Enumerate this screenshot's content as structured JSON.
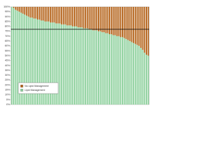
{
  "chart_data": {
    "type": "stacked_bar",
    "categories": [
      null,
      null,
      null,
      null,
      null,
      null,
      null,
      null,
      null,
      null,
      null,
      null,
      null,
      null,
      null,
      null,
      null,
      null,
      null,
      null,
      null,
      null,
      null,
      null,
      null,
      null,
      null,
      null,
      null,
      null,
      null,
      null,
      null,
      null,
      null,
      null,
      null,
      null,
      null,
      null,
      null,
      null,
      null,
      null,
      null,
      null,
      null,
      null,
      null,
      null,
      null,
      null,
      null,
      null,
      null,
      null,
      null,
      null,
      null,
      null,
      null,
      null,
      null,
      null,
      null,
      null,
      null,
      null,
      null,
      null,
      null,
      null,
      null,
      null,
      null
    ],
    "series": [
      {
        "name": "Lipid Management",
        "color": "#8fd19e",
        "values": [
          100,
          99,
          97,
          96,
          95,
          94,
          93,
          92,
          91,
          90,
          89,
          89,
          88,
          88,
          87,
          87,
          86,
          86,
          85,
          85,
          85,
          84,
          84,
          84,
          83,
          83,
          83,
          82,
          82,
          82,
          81,
          81,
          81,
          80,
          80,
          80,
          79,
          79,
          79,
          78,
          78,
          78,
          77,
          77,
          76,
          76,
          76,
          75,
          75,
          74,
          74,
          73,
          73,
          72,
          72,
          71,
          71,
          70,
          70,
          69,
          69,
          68,
          67,
          66,
          65,
          64,
          63,
          62,
          61,
          60,
          58,
          56,
          53,
          51,
          50
        ]
      },
      {
        "name": "No Lipid Management",
        "color": "#b5651d",
        "values": [
          0,
          1,
          3,
          4,
          5,
          6,
          7,
          8,
          9,
          10,
          11,
          11,
          12,
          12,
          13,
          13,
          14,
          14,
          15,
          15,
          15,
          16,
          16,
          16,
          17,
          17,
          17,
          18,
          18,
          18,
          19,
          19,
          19,
          20,
          20,
          20,
          21,
          21,
          21,
          22,
          22,
          22,
          23,
          23,
          24,
          24,
          24,
          25,
          25,
          26,
          26,
          27,
          27,
          28,
          28,
          29,
          29,
          30,
          30,
          31,
          31,
          32,
          33,
          34,
          35,
          36,
          37,
          38,
          39,
          40,
          42,
          44,
          47,
          49,
          50
        ]
      }
    ],
    "reference_line": 77,
    "ylim": [
      0,
      100
    ],
    "yticks": [
      {
        "value": 0,
        "label": "0%"
      },
      {
        "value": 5,
        "label": "5%"
      },
      {
        "value": 10,
        "label": "10%"
      },
      {
        "value": 15,
        "label": "15%"
      },
      {
        "value": 20,
        "label": "20%"
      },
      {
        "value": 25,
        "label": "25%"
      },
      {
        "value": 30,
        "label": "30%"
      },
      {
        "value": 35,
        "label": "35%"
      },
      {
        "value": 40,
        "label": "40%"
      },
      {
        "value": 45,
        "label": "45%"
      },
      {
        "value": 50,
        "label": "50%"
      },
      {
        "value": 55,
        "label": "55%"
      },
      {
        "value": 60,
        "label": "60%"
      },
      {
        "value": 65,
        "label": "65%"
      },
      {
        "value": 70,
        "label": "70%"
      },
      {
        "value": 75,
        "label": "75%"
      },
      {
        "value": 80,
        "label": "80%"
      },
      {
        "value": 85,
        "label": "85%"
      },
      {
        "value": 90,
        "label": "90%"
      },
      {
        "value": 95,
        "label": "95%"
      },
      {
        "value": 100,
        "label": "100%"
      }
    ]
  }
}
